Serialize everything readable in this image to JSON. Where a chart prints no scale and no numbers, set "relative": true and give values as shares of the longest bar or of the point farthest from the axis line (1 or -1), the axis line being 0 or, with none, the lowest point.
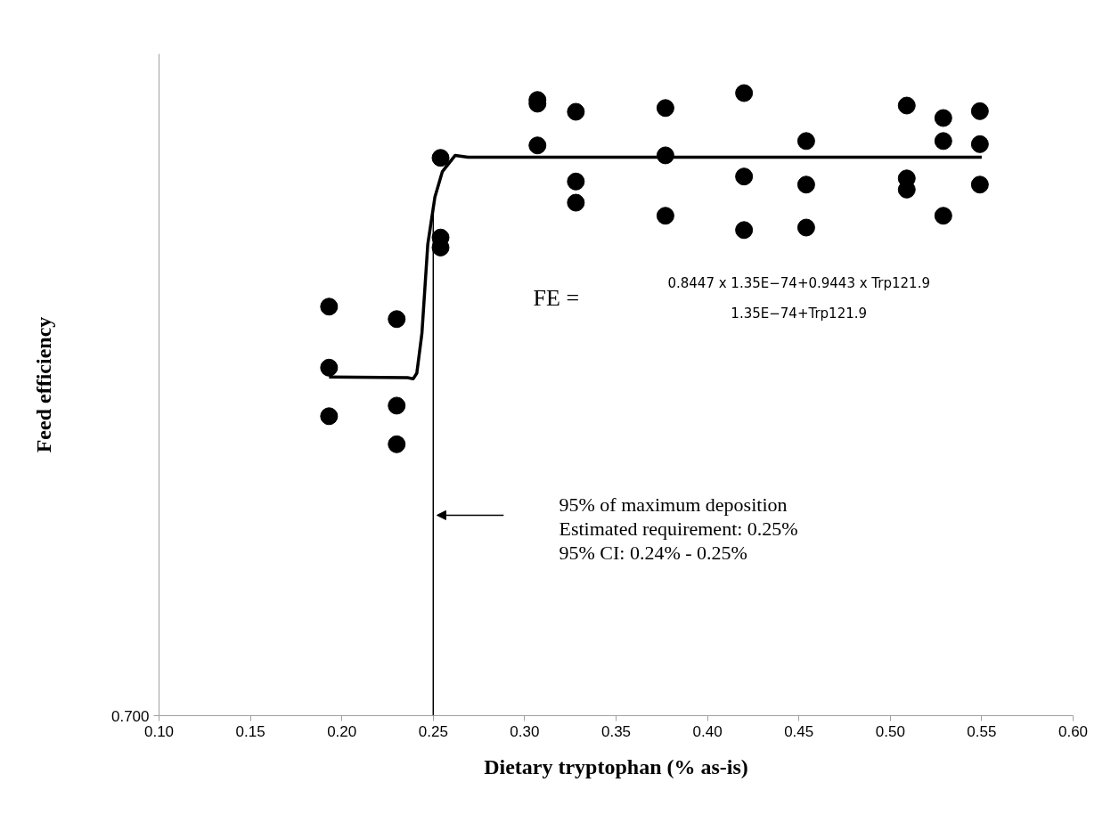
{
  "chart_data": {
    "type": "scatter",
    "relative": true,
    "xlabel": "Dietary tryptophan (% as-is)",
    "ylabel": "Feed efficiency",
    "xlim": [
      0.1,
      0.6
    ],
    "xticks": [
      {
        "value": 0.1,
        "label": "0.10"
      },
      {
        "value": 0.15,
        "label": "0.15"
      },
      {
        "value": 0.2,
        "label": "0.20"
      },
      {
        "value": 0.25,
        "label": "0.25"
      },
      {
        "value": 0.3,
        "label": "0.30"
      },
      {
        "value": 0.35,
        "label": "0.35"
      },
      {
        "value": 0.4,
        "label": "0.40"
      },
      {
        "value": 0.45,
        "label": "0.45"
      },
      {
        "value": 0.5,
        "label": "0.50"
      },
      {
        "value": 0.55,
        "label": "0.55"
      },
      {
        "value": 0.6,
        "label": "0.60"
      }
    ],
    "grid": false,
    "marker": "circle",
    "series": [
      {
        "color": "#000000",
        "x": [
          0.193,
          0.193,
          0.193,
          0.23,
          0.23,
          0.23,
          0.254,
          0.254,
          0.254,
          0.307,
          0.307,
          0.307,
          0.328,
          0.328,
          0.328,
          0.377,
          0.377,
          0.377,
          0.42,
          0.42,
          0.42,
          0.454,
          0.454,
          0.454,
          0.509,
          0.509,
          0.509,
          0.529,
          0.529,
          0.529,
          0.549,
          0.549,
          0.549
        ],
        "values": [
          0.657,
          0.559,
          0.481,
          0.637,
          0.498,
          0.436,
          0.896,
          0.768,
          0.752,
          0.989,
          0.983,
          0.916,
          0.97,
          0.858,
          0.824,
          0.976,
          0.9,
          0.803,
          1,
          0.866,
          0.78,
          0.923,
          0.853,
          0.784,
          0.98,
          0.863,
          0.845,
          0.96,
          0.923,
          0.803,
          0.971,
          0.918,
          0.853
        ]
      },
      {
        "type": "line",
        "color": "#000000",
        "marker": "none",
        "x": [
          0.193,
          0.236,
          0.239,
          0.241,
          0.2438,
          0.247,
          0.2509,
          0.255,
          0.262,
          0.269,
          0.55
        ],
        "values": [
          0.544,
          0.543,
          0.541,
          0.55,
          0.614,
          0.757,
          0.833,
          0.874,
          0.9,
          0.897,
          0.897
        ]
      }
    ],
    "ref_lines": [
      {
        "axis": "x",
        "value": 0.25,
        "color": "#000000"
      }
    ],
    "annotations": [
      "95% of maximum deposition\nEstimated requirement: 0.25%\n95% CI: 0.24% - 0.25%",
      "0.700",
      "FE =",
      "0.8447 x 1.35E−74+0.9443 x Trp121.9",
      "1.35E−74+Trp121.9"
    ]
  }
}
